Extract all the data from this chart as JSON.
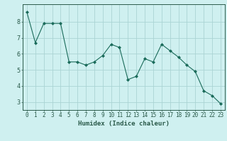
{
  "x": [
    0,
    1,
    2,
    3,
    4,
    5,
    6,
    7,
    8,
    9,
    10,
    11,
    12,
    13,
    14,
    15,
    16,
    17,
    18,
    19,
    20,
    21,
    22,
    23
  ],
  "y": [
    8.6,
    6.7,
    7.9,
    7.9,
    7.9,
    5.5,
    5.5,
    5.3,
    5.5,
    5.9,
    6.6,
    6.4,
    4.4,
    4.6,
    5.7,
    5.5,
    6.6,
    6.2,
    5.8,
    5.3,
    4.9,
    3.7,
    3.4,
    2.9
  ],
  "line_color": "#1a6b5a",
  "marker": "D",
  "marker_size": 2,
  "bg_color": "#cff0f0",
  "grid_color": "#aad4d4",
  "axis_color": "#2a5a4a",
  "xlabel": "Humidex (Indice chaleur)",
  "ylim": [
    2.5,
    9.1
  ],
  "xlim": [
    -0.5,
    23.5
  ],
  "yticks": [
    3,
    4,
    5,
    6,
    7,
    8
  ],
  "xticks": [
    0,
    1,
    2,
    3,
    4,
    5,
    6,
    7,
    8,
    9,
    10,
    11,
    12,
    13,
    14,
    15,
    16,
    17,
    18,
    19,
    20,
    21,
    22,
    23
  ],
  "tick_fontsize": 5.5,
  "xlabel_fontsize": 6.5
}
